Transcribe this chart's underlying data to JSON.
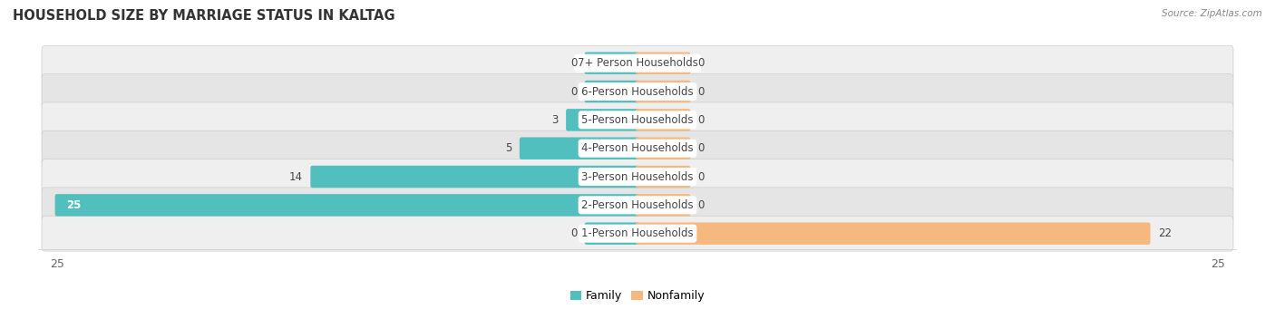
{
  "title": "HOUSEHOLD SIZE BY MARRIAGE STATUS IN KALTAG",
  "source": "Source: ZipAtlas.com",
  "categories": [
    "7+ Person Households",
    "6-Person Households",
    "5-Person Households",
    "4-Person Households",
    "3-Person Households",
    "2-Person Households",
    "1-Person Households"
  ],
  "family_values": [
    0,
    0,
    3,
    5,
    14,
    25,
    0
  ],
  "nonfamily_values": [
    0,
    0,
    0,
    0,
    0,
    0,
    22
  ],
  "family_color": "#52BFBF",
  "nonfamily_color": "#F5B97F",
  "row_color_even": "#EFEFEF",
  "row_color_odd": "#E5E5E5",
  "xlim": 25,
  "min_stub": 2.2,
  "label_fontsize": 8.5,
  "title_fontsize": 10.5,
  "axis_label_fontsize": 9,
  "background_color": "#FFFFFF"
}
